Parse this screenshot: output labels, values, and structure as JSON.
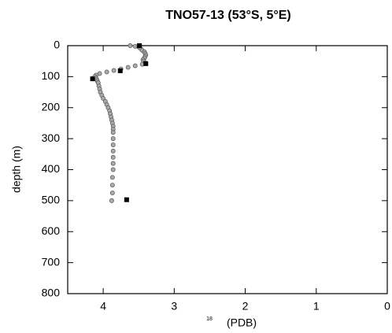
{
  "chart_data": {
    "type": "scatter",
    "title": "TNO57-13   (53°S,   5°E)",
    "y_label": "depth  (m)",
    "x_label_sup": "18",
    "x_label": "(PDB)",
    "xlim": [
      4.5,
      0
    ],
    "xticks": [
      4,
      3,
      2,
      1,
      0
    ],
    "ylim": [
      0,
      800
    ],
    "yticks": [
      0,
      100,
      200,
      300,
      400,
      500,
      600,
      700,
      800
    ],
    "y_inverted": true,
    "series": [
      {
        "marker": "circle",
        "color": "#aaaaaa",
        "x": [
          3.62,
          3.55,
          3.5,
          3.47,
          3.45,
          3.42,
          3.41,
          3.4,
          3.41,
          3.42,
          3.44,
          3.43,
          3.41,
          3.45,
          3.55,
          3.65,
          3.75,
          3.85,
          3.95,
          4.05,
          4.1,
          4.12,
          4.1,
          4.09,
          4.08,
          4.07,
          4.06,
          4.05,
          4.04,
          4.02,
          4.0,
          3.97,
          3.95,
          3.93,
          3.91,
          3.9,
          3.89,
          3.88,
          3.87,
          3.86,
          3.86,
          3.86,
          3.86,
          3.86,
          3.86,
          3.86,
          3.86,
          3.86,
          3.87,
          3.87,
          3.87,
          3.88
        ],
        "values": [
          0,
          2,
          5,
          10,
          15,
          20,
          25,
          30,
          35,
          40,
          45,
          50,
          55,
          60,
          65,
          70,
          75,
          80,
          85,
          90,
          95,
          100,
          105,
          110,
          115,
          120,
          130,
          140,
          150,
          160,
          170,
          180,
          190,
          200,
          210,
          220,
          230,
          240,
          250,
          260,
          270,
          280,
          300,
          320,
          340,
          360,
          380,
          400,
          425,
          450,
          475,
          500
        ]
      },
      {
        "marker": "square",
        "color": "#000000",
        "x": [
          3.49,
          3.4,
          3.76,
          4.15,
          3.67
        ],
        "values": [
          0,
          58,
          81,
          107,
          497
        ]
      }
    ]
  }
}
